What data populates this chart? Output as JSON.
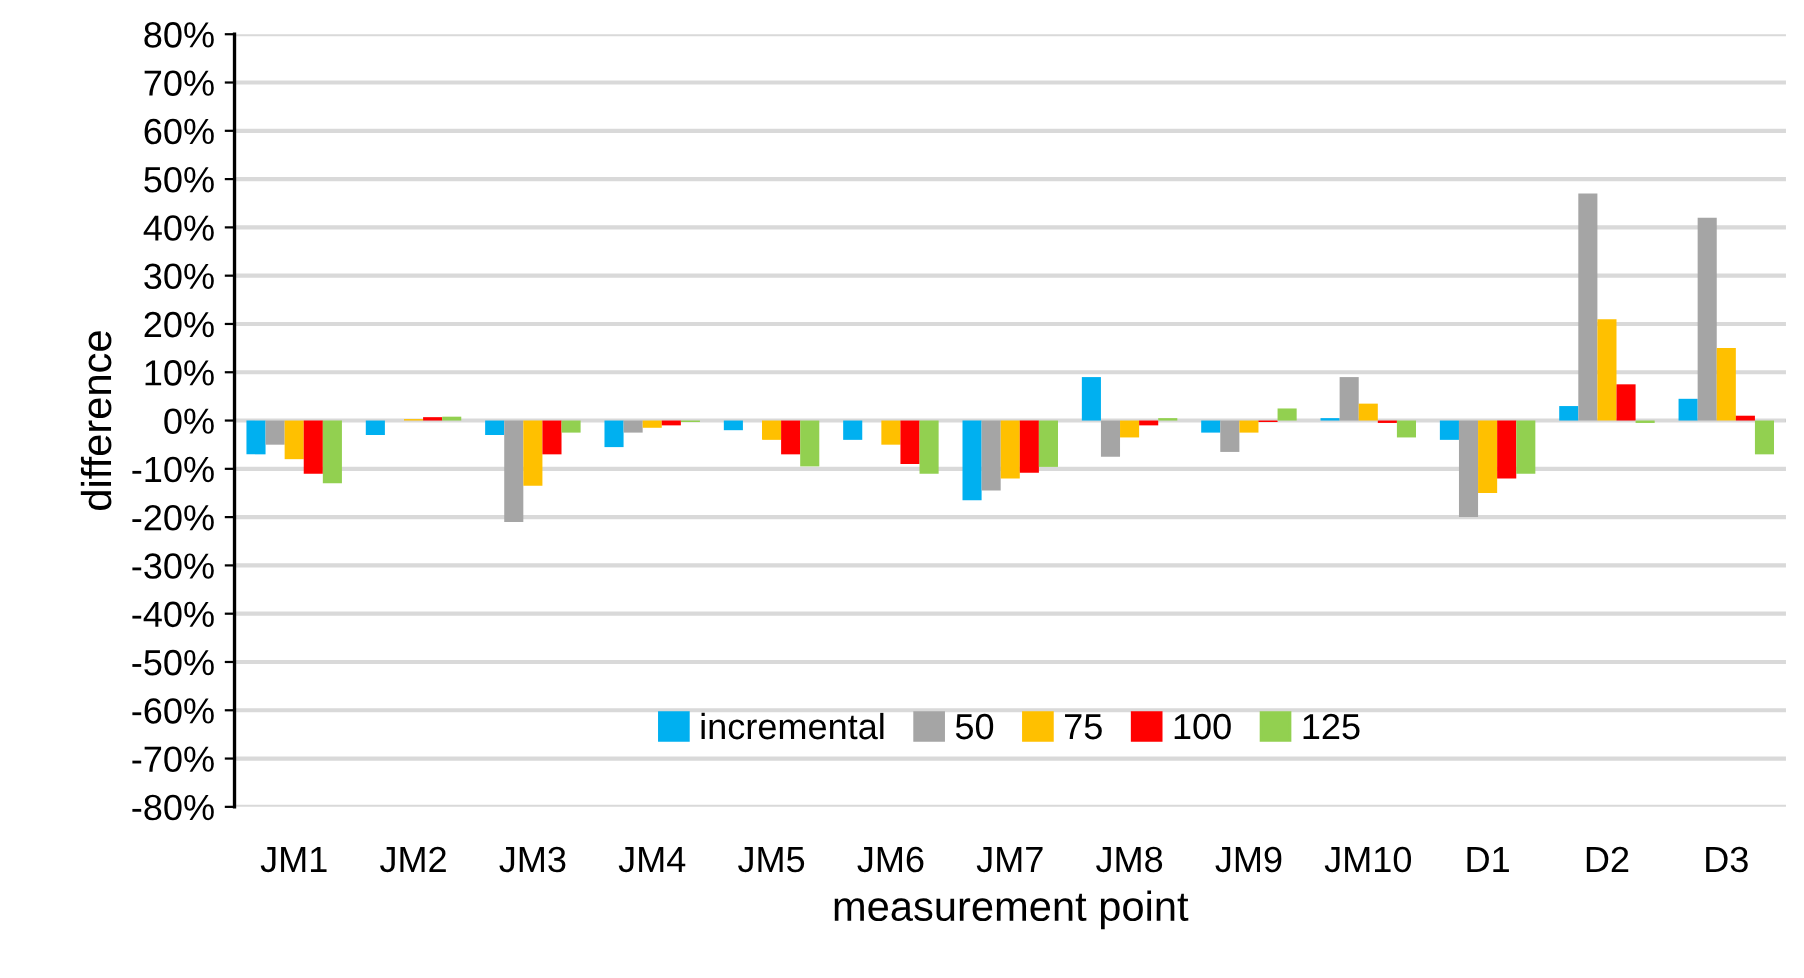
{
  "chart_data": {
    "type": "bar",
    "xlabel": "measurement point",
    "ylabel": "difference",
    "categories": [
      "JM1",
      "JM2",
      "JM3",
      "JM4",
      "JM5",
      "JM6",
      "JM7",
      "JM8",
      "JM9",
      "JM10",
      "D1",
      "D2",
      "D3"
    ],
    "series": [
      {
        "name": "incremental",
        "color": "#00b0f0",
        "values": [
          -7,
          -3,
          -3,
          -5.5,
          -2,
          -4,
          -16.5,
          9,
          -2.5,
          0.5,
          -4,
          3,
          4.5
        ]
      },
      {
        "name": "50",
        "color": "#a5a5a5",
        "values": [
          -5,
          0,
          -21,
          -2.5,
          0,
          0,
          -14.5,
          -7.5,
          -6.5,
          9,
          -20,
          47,
          42
        ]
      },
      {
        "name": "75",
        "color": "#ffc000",
        "values": [
          -8,
          0.3,
          -13.5,
          -1.5,
          -4,
          -5,
          -12,
          -3.5,
          -2.5,
          3.5,
          -15,
          21,
          15
        ]
      },
      {
        "name": "100",
        "color": "#ff0000",
        "values": [
          -11,
          0.7,
          -7,
          -1,
          -7,
          -9,
          -10.8,
          -1,
          -0.3,
          -0.5,
          -12,
          7.5,
          1
        ]
      },
      {
        "name": "125",
        "color": "#92d050",
        "values": [
          -13,
          0.8,
          -2.5,
          -0.3,
          -9.5,
          -11,
          -9.6,
          0.5,
          2.5,
          -3.5,
          -11,
          -0.5,
          -7
        ]
      }
    ],
    "ylim": [
      -80,
      80
    ],
    "yticks": [
      {
        "value": -80,
        "label": "-80%"
      },
      {
        "value": -70,
        "label": "-70%"
      },
      {
        "value": -60,
        "label": "-60%"
      },
      {
        "value": -50,
        "label": "-50%"
      },
      {
        "value": -40,
        "label": "-40%"
      },
      {
        "value": -30,
        "label": "-30%"
      },
      {
        "value": -20,
        "label": "-20%"
      },
      {
        "value": -10,
        "label": "-10%"
      },
      {
        "value": 0,
        "label": "0%"
      },
      {
        "value": 10,
        "label": "10%"
      },
      {
        "value": 20,
        "label": "20%"
      },
      {
        "value": 30,
        "label": "30%"
      },
      {
        "value": 40,
        "label": "40%"
      },
      {
        "value": 50,
        "label": "50%"
      },
      {
        "value": 60,
        "label": "60%"
      },
      {
        "value": 70,
        "label": "70%"
      },
      {
        "value": 80,
        "label": "80%"
      }
    ],
    "grid": "y",
    "legend": "bottom"
  }
}
